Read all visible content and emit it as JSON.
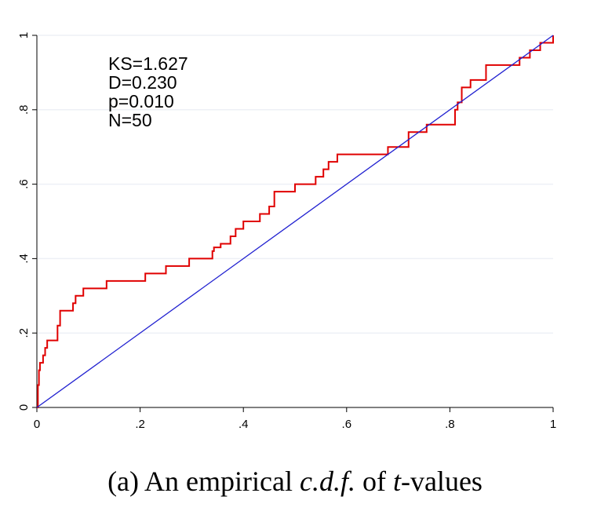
{
  "caption": {
    "prefix": "(a) An empirical ",
    "cdf": "c.d.f.",
    "middle": " of ",
    "t": "t",
    "suffix": "-values"
  },
  "chart_data": {
    "type": "line",
    "title": "",
    "xlabel": "",
    "ylabel": "",
    "xlim": [
      0,
      1
    ],
    "ylim": [
      0,
      1
    ],
    "grid": true,
    "x_ticks": [
      {
        "value": 0,
        "label": "0"
      },
      {
        "value": 0.2,
        "label": ".2"
      },
      {
        "value": 0.4,
        "label": ".4"
      },
      {
        "value": 0.6,
        "label": ".6"
      },
      {
        "value": 0.8,
        "label": ".8"
      },
      {
        "value": 1,
        "label": "1"
      }
    ],
    "y_ticks": [
      {
        "value": 0,
        "label": "0"
      },
      {
        "value": 0.2,
        "label": ".2"
      },
      {
        "value": 0.4,
        "label": ".4"
      },
      {
        "value": 0.6,
        "label": ".6"
      },
      {
        "value": 0.8,
        "label": ".8"
      },
      {
        "value": 1,
        "label": "1"
      }
    ],
    "annotations": [
      "KS=1.627",
      "D=0.230",
      "p=0.010",
      "N=50"
    ],
    "series": [
      {
        "kind": "step",
        "color": "#e00000",
        "x": [
          0.0,
          0.002,
          0.004,
          0.006,
          0.012,
          0.016,
          0.02,
          0.04,
          0.045,
          0.07,
          0.075,
          0.09,
          0.135,
          0.21,
          0.25,
          0.295,
          0.34,
          0.343,
          0.356,
          0.375,
          0.385,
          0.4,
          0.41,
          0.432,
          0.45,
          0.46,
          0.5,
          0.54,
          0.555,
          0.565,
          0.582,
          0.68,
          0.72,
          0.755,
          0.81,
          0.815,
          0.823,
          0.84,
          0.87,
          0.935,
          0.955,
          0.975,
          0.98,
          0.99,
          1.0
        ],
        "y": [
          0.0,
          0.06,
          0.1,
          0.12,
          0.14,
          0.16,
          0.18,
          0.22,
          0.26,
          0.28,
          0.3,
          0.32,
          0.34,
          0.36,
          0.38,
          0.4,
          0.42,
          0.43,
          0.44,
          0.46,
          0.48,
          0.5,
          0.5,
          0.52,
          0.54,
          0.58,
          0.6,
          0.62,
          0.64,
          0.66,
          0.68,
          0.7,
          0.74,
          0.76,
          0.8,
          0.82,
          0.86,
          0.88,
          0.92,
          0.94,
          0.96,
          0.98,
          0.98,
          0.98,
          1.0
        ]
      },
      {
        "kind": "line",
        "color": "#2020d0",
        "x": [
          0,
          1
        ],
        "y": [
          0,
          1
        ]
      }
    ]
  }
}
